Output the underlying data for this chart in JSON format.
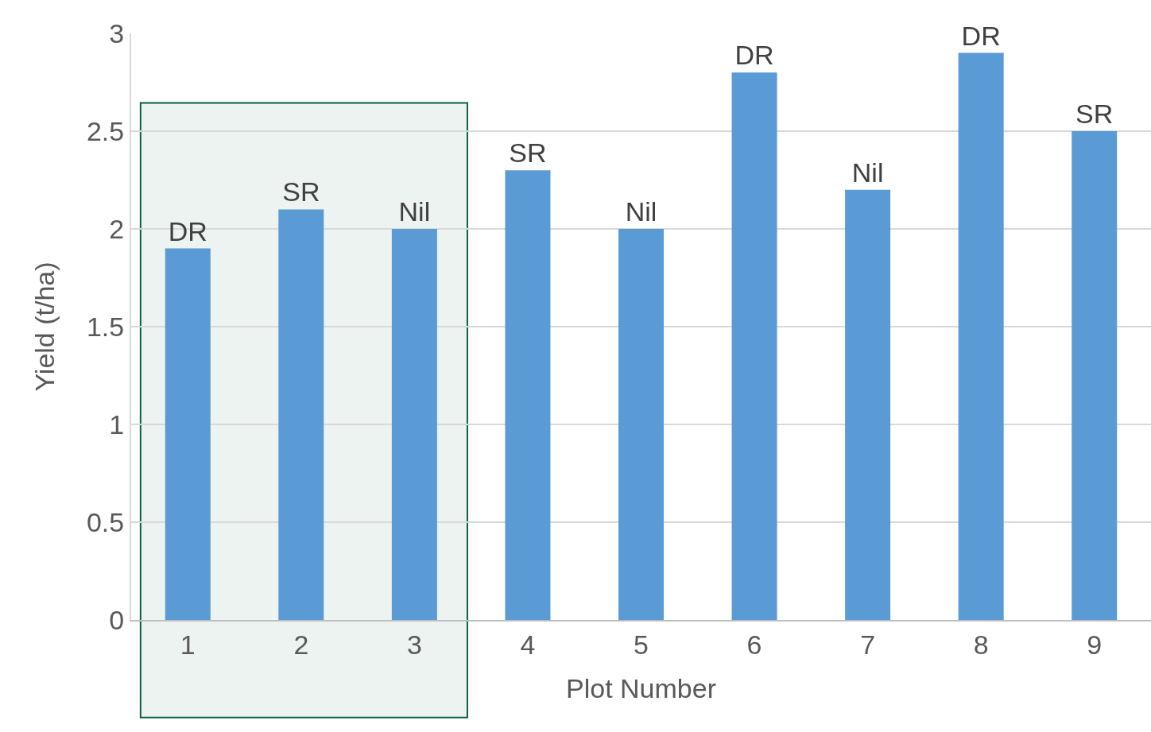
{
  "chart_data": {
    "type": "bar",
    "xlabel": "Plot Number",
    "ylabel": "Yield (t/ha)",
    "categories": [
      "1",
      "2",
      "3",
      "4",
      "5",
      "6",
      "7",
      "8",
      "9"
    ],
    "values": [
      1.9,
      2.1,
      2.0,
      2.3,
      2.0,
      2.8,
      2.2,
      2.9,
      2.5
    ],
    "value_labels": [
      "DR",
      "SR",
      "Nil",
      "SR",
      "Nil",
      "DR",
      "Nil",
      "DR",
      "SR"
    ],
    "color": "#5b9bd5",
    "ylim": [
      0,
      3
    ],
    "yticks": [
      0,
      0.5,
      1,
      1.5,
      2,
      2.5,
      3
    ],
    "grid": "y",
    "legend": false,
    "bands": [
      {
        "axis": "x",
        "from": "1",
        "to": "3",
        "color": "#0b5e3b"
      }
    ]
  }
}
